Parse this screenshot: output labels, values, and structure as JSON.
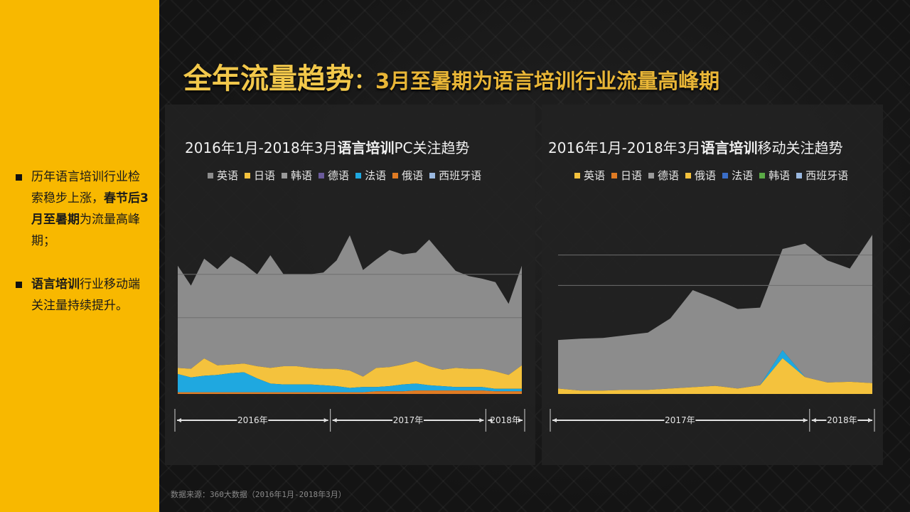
{
  "title": {
    "main": "全年流量趋势",
    "separator": "：",
    "sub": "3月至暑期为语言培训行业流量高峰期"
  },
  "sidebar": {
    "bullet1": {
      "part1": "历年语言培训行业检索稳步上涨，",
      "bold": "春节后3月至暑期",
      "part2": "为流量高峰期；"
    },
    "bullet2": {
      "bold": "语言培训",
      "part2": "行业移动端关注量持续提升。"
    }
  },
  "source": "数据来源：360大数据（2016年1月-2018年3月）",
  "colors": {
    "sidebar": "#f8b800",
    "title": "#f2c84b",
    "english": "#8c8c8c",
    "japanese": "#f4c23d",
    "korean": "#9a9a9a",
    "german": "#6a5a9a",
    "french": "#1fa8e0",
    "russian": "#e07b23",
    "spanish": "#9ab8e0"
  },
  "chart_data": [
    {
      "type": "area",
      "stacked": true,
      "title_pre": "2016年1月-2018年3月",
      "title_bold": "语言培训",
      "title_post": "PC关注趋势",
      "legend_position": "top",
      "legend": [
        {
          "name": "英语",
          "color": "#8c8c8c"
        },
        {
          "name": "日语",
          "color": "#f4c23d"
        },
        {
          "name": "韩语",
          "color": "#9a9a9a"
        },
        {
          "name": "德语",
          "color": "#6a5a9a"
        },
        {
          "name": "法语",
          "color": "#1fa8e0"
        },
        {
          "name": "俄语",
          "color": "#e07b23"
        },
        {
          "name": "西班牙语",
          "color": "#9ab8e0"
        }
      ],
      "periods": [
        {
          "label": "2016年",
          "months": 12
        },
        {
          "label": "2017年",
          "months": 12
        },
        {
          "label": "2018年",
          "months": 3
        }
      ],
      "ylim": [
        0,
        210
      ],
      "gridlines": [
        88,
        138
      ],
      "series": [
        {
          "key": "russian",
          "color": "#e07b23",
          "values": [
            2,
            2,
            2,
            2,
            2,
            2,
            2,
            2,
            2,
            2,
            2,
            2,
            2,
            2,
            2,
            3,
            3,
            3,
            4,
            4,
            4,
            4,
            4,
            4,
            3,
            3,
            3
          ]
        },
        {
          "key": "french",
          "color": "#1fa8e0",
          "values": [
            21,
            17,
            19,
            20,
            22,
            23,
            16,
            10,
            9,
            9,
            9,
            8,
            7,
            5,
            6,
            5,
            6,
            8,
            8,
            6,
            5,
            4,
            4,
            4,
            3,
            3,
            3
          ]
        },
        {
          "key": "japanese",
          "color": "#f4c23d",
          "values": [
            7,
            10,
            20,
            11,
            10,
            10,
            14,
            18,
            21,
            21,
            19,
            19,
            20,
            20,
            12,
            22,
            22,
            23,
            26,
            22,
            19,
            22,
            21,
            21,
            20,
            16,
            27
          ]
        },
        {
          "key": "english",
          "color": "#8c8c8c",
          "values": [
            118,
            96,
            115,
            111,
            125,
            115,
            106,
            130,
            106,
            106,
            108,
            111,
            125,
            156,
            123,
            125,
            135,
            127,
            125,
            146,
            132,
            112,
            107,
            104,
            103,
            82,
            115
          ]
        }
      ]
    },
    {
      "type": "area",
      "stacked": true,
      "title_pre": "2016年1月-2018年3月",
      "title_bold": "语言培训",
      "title_post": "移动关注趋势",
      "legend_position": "top",
      "legend": [
        {
          "name": "英语",
          "color": "#f4c23d"
        },
        {
          "name": "日语",
          "color": "#e07b23"
        },
        {
          "name": "德语",
          "color": "#9a9a9a"
        },
        {
          "name": "俄语",
          "color": "#f4c23d"
        },
        {
          "name": "法语",
          "color": "#3a6ec8"
        },
        {
          "name": "韩语",
          "color": "#5aaa46"
        },
        {
          "name": "西班牙语",
          "color": "#9ab8e0"
        }
      ],
      "periods": [
        {
          "label": "2017年",
          "months": 12
        },
        {
          "label": "2018年",
          "months": 3
        }
      ],
      "ylim": [
        0,
        270
      ],
      "gridlines": [
        161,
        206
      ],
      "series": [
        {
          "key": "french",
          "color": "#1fa8e0",
          "values": [
            0,
            0,
            0,
            0,
            0,
            0,
            0,
            0,
            0,
            0,
            0,
            0,
            0,
            0,
            0
          ]
        },
        {
          "key": "japanese",
          "color": "#f4c23d",
          "values": [
            8,
            5,
            5,
            6,
            6,
            8,
            10,
            12,
            8,
            13,
            53,
            25,
            17,
            18,
            16
          ]
        },
        {
          "key": "spike",
          "color": "#1fa8e0",
          "values": [
            0,
            0,
            0,
            0,
            0,
            0,
            0,
            0,
            0,
            0,
            12,
            0,
            0,
            0,
            0
          ]
        },
        {
          "key": "english",
          "color": "#8c8c8c",
          "values": [
            72,
            77,
            78,
            81,
            85,
            104,
            144,
            129,
            118,
            115,
            150,
            198,
            181,
            168,
            220
          ]
        }
      ]
    }
  ]
}
